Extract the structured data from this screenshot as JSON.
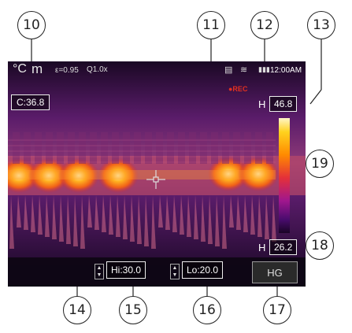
{
  "status": {
    "unit": "°C",
    "mode_glyph": "m",
    "emissivity": "ε=0.95",
    "zoom": "Q1.0x",
    "sd_icon": "sd-card-icon",
    "wifi_icon": "wifi-icon",
    "battery_icon": "battery-icon",
    "time": "12:00AM"
  },
  "recording": "●REC",
  "center_temp": "C:36.8",
  "high_temp": {
    "tag": "H",
    "value": "46.8"
  },
  "low_temp": {
    "tag": "H",
    "value": "26.2"
  },
  "controls": {
    "hi_limit": "Hi:30.0",
    "lo_limit": "Lo:20.0",
    "mode_button": "HG",
    "stepper_up": "▲",
    "stepper_down": "▼"
  },
  "callouts": [
    "10",
    "11",
    "12",
    "13",
    "14",
    "15",
    "16",
    "17",
    "18",
    "19"
  ],
  "colors": {
    "rec": "#e23020",
    "palette": "ironbow"
  }
}
